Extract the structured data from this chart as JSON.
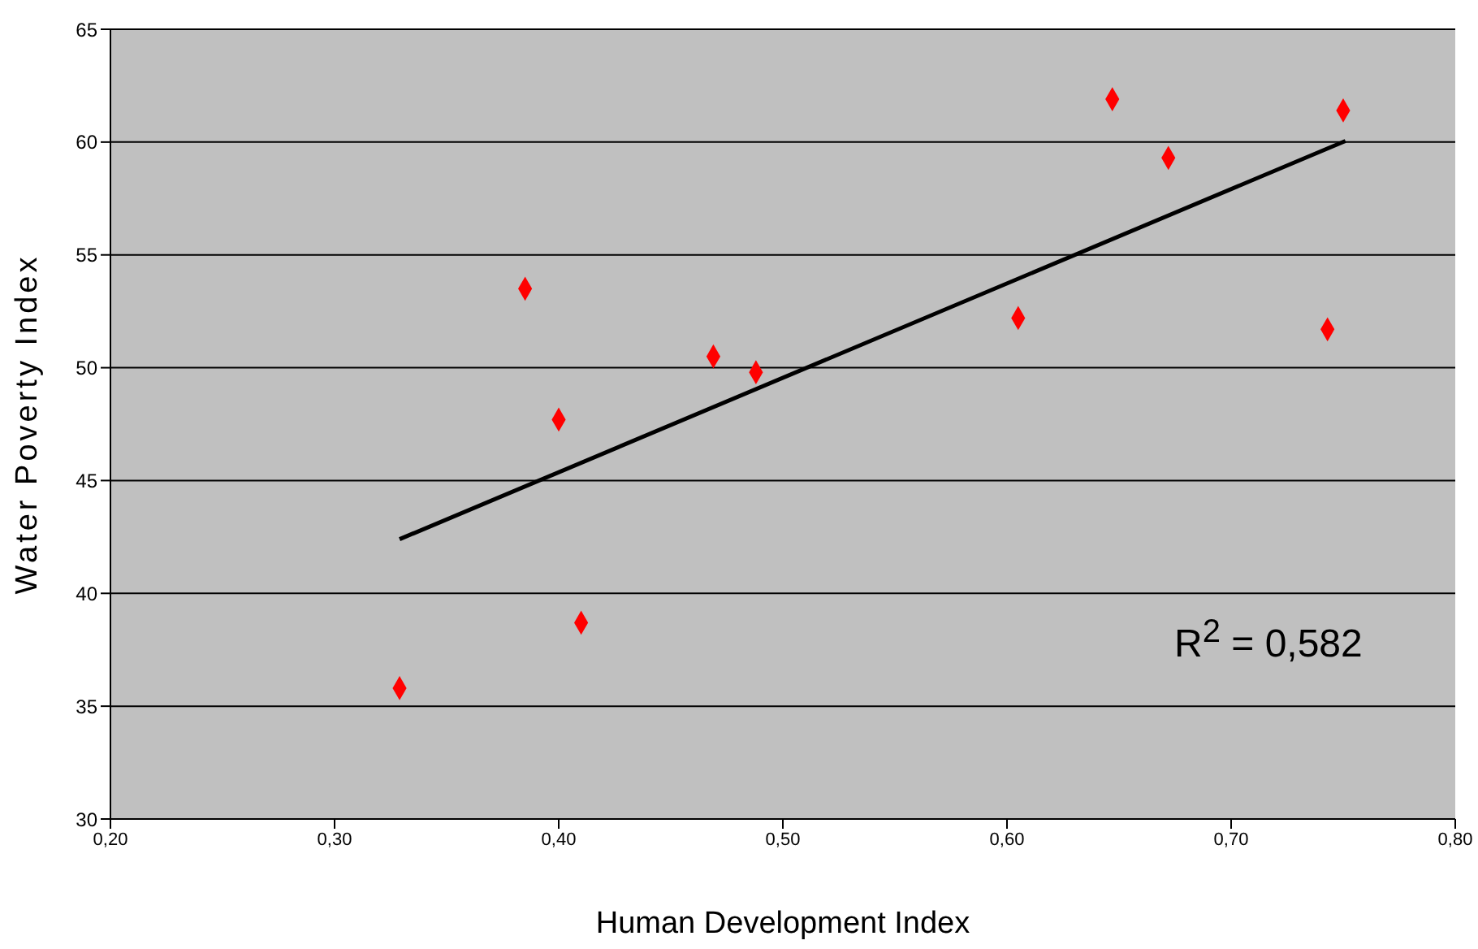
{
  "chart_data": {
    "type": "scatter",
    "xlabel": "Human Development Index",
    "ylabel": "Water Poverty Index",
    "xlim": [
      0.2,
      0.8
    ],
    "xticks": [
      {
        "value": 0.2,
        "label": "0,20"
      },
      {
        "value": 0.3,
        "label": "0,30"
      },
      {
        "value": 0.4,
        "label": "0,40"
      },
      {
        "value": 0.5,
        "label": "0,50"
      },
      {
        "value": 0.6,
        "label": "0,60"
      },
      {
        "value": 0.7,
        "label": "0,70"
      },
      {
        "value": 0.8,
        "label": "0,80"
      }
    ],
    "ylim": [
      30,
      65
    ],
    "yticks": [
      30,
      35,
      40,
      45,
      50,
      55,
      60,
      65
    ],
    "grid": "y",
    "marker": "diamond",
    "annotations": [
      "R$^{2}$ = 0,582"
    ],
    "series": [
      {
        "color": "#ff0000",
        "x": [
          0.329,
          0.385,
          0.4,
          0.41,
          0.469,
          0.488,
          0.605,
          0.647,
          0.672,
          0.743,
          0.75
        ],
        "values": [
          35.8,
          53.5,
          47.7,
          38.7,
          50.5,
          49.8,
          52.2,
          61.9,
          59.3,
          51.7,
          61.4
        ]
      },
      {
        "type": "line",
        "color": "#000000",
        "marker": "none",
        "line_style": "solid",
        "x": [
          0.329,
          0.751
        ],
        "values": [
          42.4,
          60.05
        ]
      }
    ]
  }
}
